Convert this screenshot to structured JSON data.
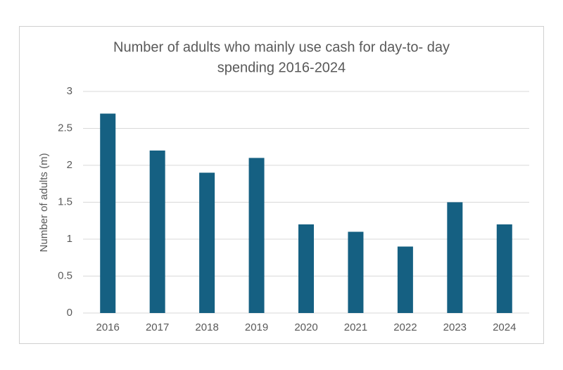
{
  "chart_data": {
    "type": "bar",
    "title": [
      "Number of adults who mainly use cash for day-to- day",
      "spending 2016-2024"
    ],
    "y_label": "Number of adults (m)",
    "categories": [
      "2016",
      "2017",
      "2018",
      "2019",
      "2020",
      "2021",
      "2022",
      "2023",
      "2024"
    ],
    "values": [
      2.7,
      2.2,
      1.9,
      2.1,
      1.2,
      1.1,
      0.9,
      1.5,
      1.2
    ],
    "color": "#156082",
    "ylim": [
      0,
      3
    ],
    "yticks": [
      0,
      0.5,
      1,
      1.5,
      2,
      2.5,
      3
    ],
    "grid": true
  }
}
